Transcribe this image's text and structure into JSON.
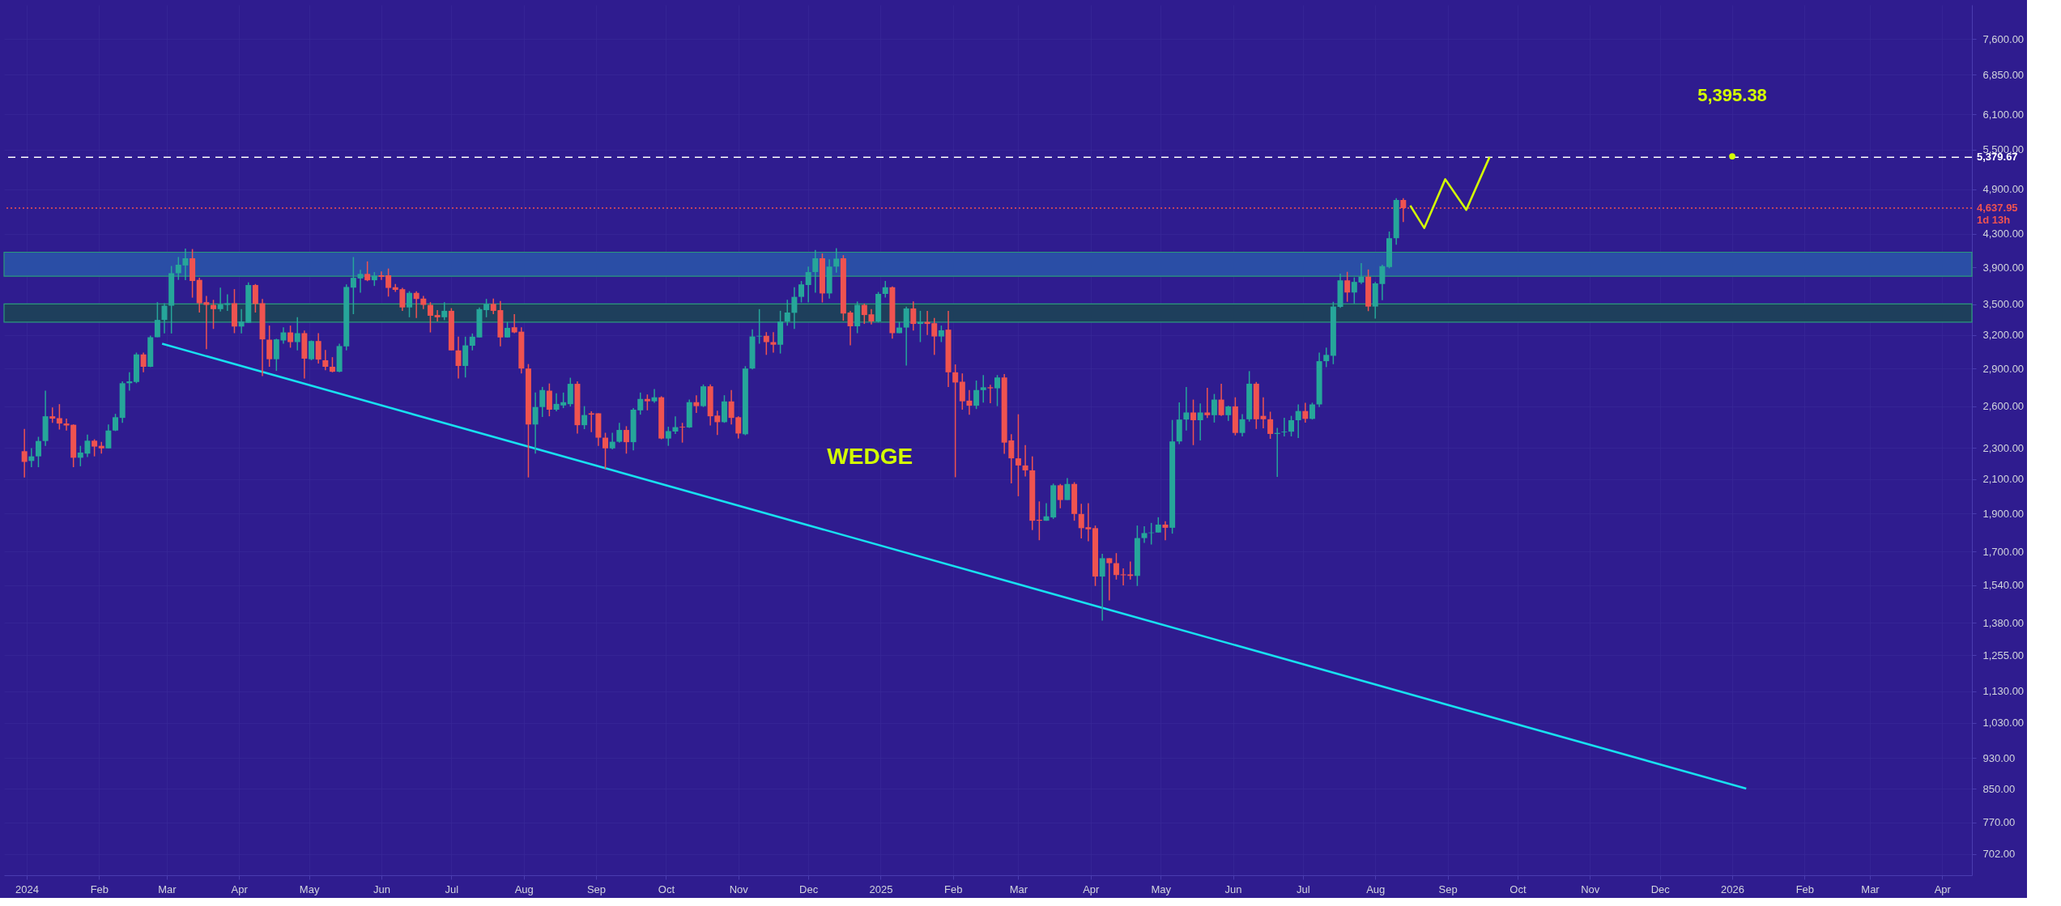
{
  "chart_data": {
    "type": "candlestick",
    "x": [
      "2023-12-31",
      "2024-01-03",
      "2024-01-06",
      "2024-01-09",
      "2024-01-12",
      "2024-01-15",
      "2024-01-18",
      "2024-01-21",
      "2024-01-24",
      "2024-01-27",
      "2024-01-30",
      "2024-02-02",
      "2024-02-05",
      "2024-02-08",
      "2024-02-11",
      "2024-02-14",
      "2024-02-17",
      "2024-02-20",
      "2024-02-23",
      "2024-02-26",
      "2024-02-29",
      "2024-03-03",
      "2024-03-06",
      "2024-03-09",
      "2024-03-12",
      "2024-03-15",
      "2024-03-18",
      "2024-03-21",
      "2024-03-24",
      "2024-03-27",
      "2024-03-30",
      "2024-04-02",
      "2024-04-05",
      "2024-04-08",
      "2024-04-11",
      "2024-04-14",
      "2024-04-17",
      "2024-04-20",
      "2024-04-23",
      "2024-04-26",
      "2024-04-29",
      "2024-05-02",
      "2024-05-05",
      "2024-05-08",
      "2024-05-11",
      "2024-05-14",
      "2024-05-17",
      "2024-05-20",
      "2024-05-23",
      "2024-05-26",
      "2024-05-29",
      "2024-06-01",
      "2024-06-04",
      "2024-06-07",
      "2024-06-10",
      "2024-06-13",
      "2024-06-16",
      "2024-06-19",
      "2024-06-22",
      "2024-06-25",
      "2024-06-28",
      "2024-07-01",
      "2024-07-04",
      "2024-07-07",
      "2024-07-10",
      "2024-07-13",
      "2024-07-16",
      "2024-07-19",
      "2024-07-22",
      "2024-07-25",
      "2024-07-28",
      "2024-07-31",
      "2024-08-03",
      "2024-08-06",
      "2024-08-09",
      "2024-08-12",
      "2024-08-15",
      "2024-08-18",
      "2024-08-21",
      "2024-08-24",
      "2024-08-27",
      "2024-08-30",
      "2024-09-02",
      "2024-09-05",
      "2024-09-08",
      "2024-09-11",
      "2024-09-14",
      "2024-09-17",
      "2024-09-20",
      "2024-09-23",
      "2024-09-26",
      "2024-09-29",
      "2024-10-02",
      "2024-10-05",
      "2024-10-08",
      "2024-10-11",
      "2024-10-14",
      "2024-10-17",
      "2024-10-20",
      "2024-10-23",
      "2024-10-26",
      "2024-10-29",
      "2024-11-01",
      "2024-11-04",
      "2024-11-07",
      "2024-11-10",
      "2024-11-13",
      "2024-11-16",
      "2024-11-19",
      "2024-11-22",
      "2024-11-25",
      "2024-11-28",
      "2024-12-01",
      "2024-12-04",
      "2024-12-07",
      "2024-12-10",
      "2024-12-13",
      "2024-12-16",
      "2024-12-19",
      "2024-12-22",
      "2024-12-25",
      "2024-12-28",
      "2024-12-31",
      "2025-01-03",
      "2025-01-06",
      "2025-01-09",
      "2025-01-12",
      "2025-01-15",
      "2025-01-18",
      "2025-01-21",
      "2025-01-24",
      "2025-01-27",
      "2025-01-30",
      "2025-02-02",
      "2025-02-05",
      "2025-02-08",
      "2025-02-11",
      "2025-02-14",
      "2025-02-17",
      "2025-02-20",
      "2025-02-23",
      "2025-02-26",
      "2025-03-01",
      "2025-03-04",
      "2025-03-07",
      "2025-03-10",
      "2025-03-13",
      "2025-03-16",
      "2025-03-19",
      "2025-03-22",
      "2025-03-25",
      "2025-03-28",
      "2025-03-31",
      "2025-04-03",
      "2025-04-06",
      "2025-04-09",
      "2025-04-12",
      "2025-04-15",
      "2025-04-18",
      "2025-04-21",
      "2025-04-24",
      "2025-04-27",
      "2025-04-30",
      "2025-05-03",
      "2025-05-06",
      "2025-05-09",
      "2025-05-12",
      "2025-05-15",
      "2025-05-18",
      "2025-05-21",
      "2025-05-24",
      "2025-05-27",
      "2025-05-30",
      "2025-06-02",
      "2025-06-05",
      "2025-06-08",
      "2025-06-11",
      "2025-06-14",
      "2025-06-17",
      "2025-06-20",
      "2025-06-23",
      "2025-06-26",
      "2025-06-29",
      "2025-07-02",
      "2025-07-05",
      "2025-07-08",
      "2025-07-11",
      "2025-07-14",
      "2025-07-17",
      "2025-07-20",
      "2025-07-23",
      "2025-07-26",
      "2025-07-29",
      "2025-08-01",
      "2025-08-04",
      "2025-08-07",
      "2025-08-10",
      "2025-08-13"
    ],
    "ohlc": [
      [
        2279,
        2433,
        2111,
        2209
      ],
      [
        2215,
        2300,
        2175,
        2245
      ],
      [
        2245,
        2377,
        2175,
        2348
      ],
      [
        2348,
        2720,
        2315,
        2524
      ],
      [
        2524,
        2590,
        2476,
        2507
      ],
      [
        2510,
        2615,
        2428,
        2471
      ],
      [
        2471,
        2507,
        2421,
        2457
      ],
      [
        2462,
        2465,
        2175,
        2236
      ],
      [
        2236,
        2315,
        2181,
        2270
      ],
      [
        2263,
        2393,
        2241,
        2350
      ],
      [
        2350,
        2360,
        2245,
        2310
      ],
      [
        2315,
        2342,
        2263,
        2298
      ],
      [
        2298,
        2464,
        2298,
        2421
      ],
      [
        2421,
        2542,
        2417,
        2517
      ],
      [
        2512,
        2795,
        2476,
        2780
      ],
      [
        2780,
        2870,
        2720,
        2795
      ],
      [
        2790,
        3040,
        2780,
        3024
      ],
      [
        3024,
        3040,
        2870,
        2917
      ],
      [
        2917,
        3195,
        2914,
        3180
      ],
      [
        3180,
        3523,
        3180,
        3345
      ],
      [
        3345,
        3513,
        3215,
        3487
      ],
      [
        3487,
        3916,
        3215,
        3834
      ],
      [
        3834,
        4020,
        3760,
        3930
      ],
      [
        3922,
        4120,
        3757,
        4005
      ],
      [
        4005,
        4115,
        3570,
        3748
      ],
      [
        3760,
        3783,
        3418,
        3512
      ],
      [
        3523,
        3588,
        3071,
        3495
      ],
      [
        3495,
        3547,
        3258,
        3452
      ],
      [
        3452,
        3675,
        3428,
        3499
      ],
      [
        3495,
        3605,
        3435,
        3512
      ],
      [
        3512,
        3660,
        3218,
        3281
      ],
      [
        3281,
        3452,
        3215,
        3330
      ],
      [
        3317,
        3733,
        3317,
        3704
      ],
      [
        3704,
        3715,
        3418,
        3505
      ],
      [
        3512,
        3557,
        2839,
        3160
      ],
      [
        3157,
        3290,
        2917,
        2982
      ],
      [
        2982,
        3166,
        2882,
        3160
      ],
      [
        3150,
        3274,
        3120,
        3225
      ],
      [
        3225,
        3290,
        3084,
        3135
      ],
      [
        3135,
        3371,
        3060,
        3218
      ],
      [
        3218,
        3242,
        2819,
        2987
      ],
      [
        2982,
        3150,
        2973,
        3145
      ],
      [
        3145,
        3218,
        2944,
        2979
      ],
      [
        2973,
        3063,
        2888,
        2917
      ],
      [
        2917,
        3000,
        2870,
        2875
      ],
      [
        2875,
        3120,
        2870,
        3099
      ],
      [
        3096,
        3711,
        3060,
        3683
      ],
      [
        3676,
        4020,
        3402,
        3783
      ],
      [
        3776,
        3872,
        3623,
        3826
      ],
      [
        3826,
        3969,
        3746,
        3756
      ],
      [
        3756,
        3847,
        3694,
        3808
      ],
      [
        3811,
        3855,
        3760,
        3794
      ],
      [
        3811,
        3887,
        3581,
        3673
      ],
      [
        3680,
        3715,
        3630,
        3652
      ],
      [
        3659,
        3673,
        3435,
        3469
      ],
      [
        3469,
        3638,
        3371,
        3620
      ],
      [
        3620,
        3638,
        3364,
        3557
      ],
      [
        3560,
        3588,
        3452,
        3495
      ],
      [
        3495,
        3523,
        3225,
        3386
      ],
      [
        3393,
        3442,
        3330,
        3371
      ],
      [
        3371,
        3523,
        3343,
        3435
      ],
      [
        3435,
        3462,
        3060,
        3060
      ],
      [
        3060,
        3185,
        2819,
        2924
      ],
      [
        2924,
        3185,
        2827,
        3105
      ],
      [
        3102,
        3215,
        3060,
        3185
      ],
      [
        3178,
        3469,
        3178,
        3452
      ],
      [
        3442,
        3557,
        3371,
        3505
      ],
      [
        3505,
        3560,
        3402,
        3435
      ],
      [
        3442,
        3535,
        3096,
        3178
      ],
      [
        3178,
        3325,
        3178,
        3268
      ],
      [
        3274,
        3402,
        3218,
        3225
      ],
      [
        3232,
        3274,
        2861,
        2902
      ],
      [
        2902,
        2940,
        2111,
        2464
      ],
      [
        2464,
        2705,
        2263,
        2593
      ],
      [
        2593,
        2750,
        2519,
        2725
      ],
      [
        2720,
        2778,
        2524,
        2573
      ],
      [
        2573,
        2700,
        2561,
        2617
      ],
      [
        2605,
        2705,
        2585,
        2630
      ],
      [
        2615,
        2825,
        2597,
        2775
      ],
      [
        2775,
        2795,
        2400,
        2459
      ],
      [
        2459,
        2600,
        2431,
        2533
      ],
      [
        2546,
        2561,
        2409,
        2536
      ],
      [
        2546,
        2546,
        2315,
        2371
      ],
      [
        2371,
        2405,
        2164,
        2298
      ],
      [
        2298,
        2405,
        2291,
        2343
      ],
      [
        2343,
        2476,
        2337,
        2425
      ],
      [
        2425,
        2452,
        2263,
        2340
      ],
      [
        2340,
        2585,
        2285,
        2573
      ],
      [
        2568,
        2705,
        2536,
        2655
      ],
      [
        2655,
        2690,
        2568,
        2637
      ],
      [
        2637,
        2733,
        2625,
        2668
      ],
      [
        2668,
        2676,
        2360,
        2365
      ],
      [
        2365,
        2448,
        2315,
        2417
      ],
      [
        2414,
        2524,
        2397,
        2445
      ],
      [
        2448,
        2476,
        2337,
        2443
      ],
      [
        2443,
        2650,
        2440,
        2630
      ],
      [
        2630,
        2684,
        2549,
        2600
      ],
      [
        2600,
        2770,
        2593,
        2755
      ],
      [
        2755,
        2770,
        2457,
        2524
      ],
      [
        2529,
        2566,
        2390,
        2481
      ],
      [
        2481,
        2684,
        2476,
        2636
      ],
      [
        2636,
        2725,
        2464,
        2512
      ],
      [
        2517,
        2524,
        2365,
        2400
      ],
      [
        2395,
        2922,
        2388,
        2902
      ],
      [
        2902,
        3255,
        2894,
        3187
      ],
      [
        3187,
        3452,
        3120,
        3193
      ],
      [
        3193,
        3228,
        3020,
        3135
      ],
      [
        3135,
        3228,
        3041,
        3111
      ],
      [
        3111,
        3435,
        3032,
        3330
      ],
      [
        3330,
        3547,
        3290,
        3418
      ],
      [
        3415,
        3680,
        3258,
        3578
      ],
      [
        3578,
        3748,
        3520,
        3711
      ],
      [
        3704,
        3909,
        3520,
        3847
      ],
      [
        3847,
        4103,
        3623,
        4005
      ],
      [
        4005,
        4062,
        3520,
        3614
      ],
      [
        3614,
        3993,
        3560,
        3909
      ],
      [
        3909,
        4125,
        3840,
        4001
      ],
      [
        4005,
        4042,
        3337,
        3408
      ],
      [
        3418,
        3435,
        3105,
        3283
      ],
      [
        3283,
        3530,
        3218,
        3495
      ],
      [
        3495,
        3509,
        3306,
        3393
      ],
      [
        3400,
        3452,
        3300,
        3330
      ],
      [
        3330,
        3630,
        3320,
        3609
      ],
      [
        3609,
        3748,
        3570,
        3680
      ],
      [
        3680,
        3690,
        3166,
        3218
      ],
      [
        3218,
        3325,
        3218,
        3271
      ],
      [
        3271,
        3477,
        2928,
        3459
      ],
      [
        3459,
        3530,
        3242,
        3306
      ],
      [
        3306,
        3435,
        3135,
        3326
      ],
      [
        3326,
        3435,
        3200,
        3306
      ],
      [
        3313,
        3364,
        3020,
        3187
      ],
      [
        3187,
        3290,
        3135,
        3245
      ],
      [
        3251,
        3435,
        2750,
        2870
      ],
      [
        2870,
        2937,
        2112,
        2786
      ],
      [
        2792,
        2861,
        2573,
        2637
      ],
      [
        2642,
        2725,
        2536,
        2603
      ],
      [
        2603,
        2802,
        2578,
        2725
      ],
      [
        2725,
        2847,
        2627,
        2747
      ],
      [
        2747,
        2767,
        2622,
        2739
      ],
      [
        2739,
        2847,
        2600,
        2827
      ],
      [
        2827,
        2855,
        2262,
        2337
      ],
      [
        2352,
        2395,
        2074,
        2232
      ],
      [
        2232,
        2539,
        1998,
        2186
      ],
      [
        2186,
        2320,
        2117,
        2155
      ],
      [
        2155,
        2245,
        1810,
        1860
      ],
      [
        1865,
        1968,
        1757,
        1860
      ],
      [
        1860,
        1958,
        1860,
        1884
      ],
      [
        1878,
        2073,
        1870,
        2063
      ],
      [
        2063,
        2071,
        1929,
        1976
      ],
      [
        1976,
        2107,
        1976,
        2071
      ],
      [
        2071,
        2082,
        1860,
        1897
      ],
      [
        1897,
        1954,
        1766,
        1820
      ],
      [
        1825,
        1958,
        1752,
        1814
      ],
      [
        1820,
        1834,
        1537,
        1580
      ],
      [
        1580,
        1689,
        1389,
        1667
      ],
      [
        1667,
        1667,
        1474,
        1643
      ],
      [
        1643,
        1692,
        1566,
        1587
      ],
      [
        1590,
        1618,
        1540,
        1586
      ],
      [
        1590,
        1651,
        1566,
        1583
      ],
      [
        1583,
        1834,
        1537,
        1768
      ],
      [
        1768,
        1830,
        1743,
        1794
      ],
      [
        1794,
        1848,
        1735,
        1797
      ],
      [
        1797,
        1879,
        1797,
        1839
      ],
      [
        1839,
        1857,
        1757,
        1822
      ],
      [
        1822,
        2497,
        1791,
        2345
      ],
      [
        2345,
        2628,
        2327,
        2500
      ],
      [
        2500,
        2749,
        2421,
        2552
      ],
      [
        2552,
        2650,
        2320,
        2495
      ],
      [
        2495,
        2620,
        2352,
        2552
      ],
      [
        2552,
        2743,
        2512,
        2532
      ],
      [
        2532,
        2694,
        2478,
        2650
      ],
      [
        2650,
        2775,
        2527,
        2532
      ],
      [
        2532,
        2603,
        2490,
        2598
      ],
      [
        2598,
        2668,
        2387,
        2404
      ],
      [
        2404,
        2540,
        2380,
        2502
      ],
      [
        2502,
        2880,
        2485,
        2776
      ],
      [
        2776,
        2790,
        2432,
        2502
      ],
      [
        2527,
        2668,
        2437,
        2502
      ],
      [
        2502,
        2558,
        2363,
        2397
      ],
      [
        2397,
        2440,
        2114,
        2404
      ],
      [
        2408,
        2513,
        2380,
        2413
      ],
      [
        2413,
        2527,
        2380,
        2495
      ],
      [
        2495,
        2613,
        2368,
        2563
      ],
      [
        2563,
        2626,
        2477,
        2505
      ],
      [
        2505,
        2626,
        2500,
        2613
      ],
      [
        2613,
        3041,
        2593,
        2965
      ],
      [
        2965,
        3085,
        2914,
        3020
      ],
      [
        3012,
        3527,
        2939,
        3478
      ],
      [
        3475,
        3830,
        3465,
        3755
      ],
      [
        3755,
        3850,
        3527,
        3624
      ],
      [
        3624,
        3788,
        3510,
        3738
      ],
      [
        3732,
        3948,
        3715,
        3795
      ],
      [
        3795,
        3876,
        3432,
        3478
      ],
      [
        3478,
        3738,
        3357,
        3722
      ],
      [
        3715,
        3931,
        3543,
        3914
      ],
      [
        3904,
        4331,
        3890,
        4247
      ],
      [
        4247,
        4775,
        4168,
        4749
      ],
      [
        4749,
        4775,
        4453,
        4637.95
      ]
    ],
    "colors": [
      "#ef5350",
      "#26a69a",
      "#26a69a",
      "#26a69a",
      "#ef5350",
      "#ef5350",
      "#ef5350",
      "#ef5350",
      "#26a69a",
      "#26a69a",
      "#ef5350",
      "#ef5350",
      "#26a69a",
      "#26a69a",
      "#26a69a",
      "#26a69a",
      "#26a69a",
      "#ef5350",
      "#26a69a",
      "#26a69a",
      "#26a69a",
      "#26a69a",
      "#26a69a",
      "#26a69a",
      "#ef5350",
      "#ef5350",
      "#ef5350",
      "#ef5350",
      "#26a69a",
      "#26a69a",
      "#ef5350",
      "#26a69a",
      "#26a69a",
      "#ef5350",
      "#ef5350",
      "#ef5350",
      "#26a69a",
      "#26a69a",
      "#ef5350",
      "#26a69a",
      "#ef5350",
      "#26a69a",
      "#ef5350",
      "#ef5350",
      "#ef5350",
      "#26a69a",
      "#26a69a",
      "#26a69a",
      "#26a69a",
      "#ef5350",
      "#26a69a",
      "#ef5350",
      "#ef5350",
      "#ef5350",
      "#ef5350",
      "#26a69a",
      "#ef5350",
      "#ef5350",
      "#ef5350",
      "#ef5350",
      "#26a69a",
      "#ef5350",
      "#ef5350",
      "#26a69a",
      "#26a69a",
      "#26a69a",
      "#26a69a",
      "#ef5350",
      "#ef5350",
      "#26a69a",
      "#ef5350",
      "#ef5350",
      "#ef5350",
      "#26a69a",
      "#26a69a",
      "#ef5350",
      "#26a69a",
      "#26a69a",
      "#26a69a",
      "#ef5350",
      "#26a69a",
      "#ef5350",
      "#ef5350",
      "#ef5350",
      "#26a69a",
      "#26a69a",
      "#ef5350",
      "#26a69a",
      "#26a69a",
      "#ef5350",
      "#26a69a",
      "#ef5350",
      "#26a69a",
      "#26a69a",
      "#ef5350",
      "#26a69a",
      "#ef5350",
      "#26a69a",
      "#ef5350",
      "#ef5350",
      "#26a69a",
      "#ef5350",
      "#ef5350",
      "#26a69a",
      "#26a69a",
      "#26a69a",
      "#ef5350",
      "#ef5350",
      "#26a69a",
      "#26a69a",
      "#26a69a",
      "#26a69a",
      "#26a69a",
      "#26a69a",
      "#ef5350",
      "#26a69a",
      "#26a69a",
      "#ef5350",
      "#ef5350",
      "#26a69a",
      "#ef5350",
      "#ef5350",
      "#26a69a",
      "#26a69a",
      "#ef5350",
      "#26a69a",
      "#26a69a",
      "#ef5350",
      "#26a69a",
      "#ef5350",
      "#ef5350",
      "#26a69a",
      "#ef5350",
      "#ef5350",
      "#ef5350",
      "#ef5350",
      "#26a69a",
      "#26a69a",
      "#ef5350",
      "#26a69a",
      "#ef5350",
      "#ef5350",
      "#ef5350",
      "#ef5350",
      "#ef5350",
      "#ef5350",
      "#26a69a",
      "#26a69a",
      "#ef5350",
      "#26a69a",
      "#ef5350",
      "#ef5350",
      "#ef5350",
      "#ef5350",
      "#26a69a",
      "#ef5350",
      "#ef5350",
      "#ef5350",
      "#ef5350",
      "#26a69a",
      "#26a69a",
      "#26a69a",
      "#26a69a",
      "#ef5350",
      "#26a69a",
      "#26a69a",
      "#26a69a",
      "#ef5350",
      "#26a69a",
      "#ef5350",
      "#26a69a",
      "#ef5350",
      "#26a69a",
      "#ef5350",
      "#26a69a",
      "#26a69a",
      "#ef5350",
      "#ef5350",
      "#ef5350",
      "#26a69a",
      "#26a69a",
      "#26a69a",
      "#26a69a",
      "#ef5350",
      "#26a69a",
      "#26a69a",
      "#26a69a",
      "#26a69a",
      "#26a69a",
      "#ef5350",
      "#26a69a",
      "#26a69a",
      "#ef5350",
      "#26a69a",
      "#26a69a",
      "#26a69a",
      "#26a69a",
      "#ef5350"
    ],
    "series": [
      {
        "type": "line",
        "color": "#18e0f0",
        "x": [
          "2024-02-28",
          "2026-01-07"
        ],
        "values": [
          3120,
          850
        ]
      },
      {
        "type": "line",
        "color": "#d4ff00",
        "x": [
          "2025-08-16",
          "2025-08-22",
          "2025-08-31",
          "2025-09-09",
          "2025-09-19"
        ],
        "values": [
          4672,
          4376,
          5046,
          4614,
          5385
        ]
      }
    ],
    "bands": [
      {
        "axis": "y",
        "from": 3800,
        "to": 4077,
        "color": "#2a4ea6"
      },
      {
        "axis": "y",
        "from": 3324,
        "to": 3505,
        "color": "#1e3f5c"
      }
    ],
    "ref_lines": [
      {
        "axis": "y",
        "value": 5379.67,
        "label": "5,379.67",
        "color": "#ffffff",
        "line_style": "dashed"
      },
      {
        "axis": "y",
        "value": 4637.95,
        "label": "4,637.95\n1d 13h",
        "color": "#ef5350",
        "line_style": "dotted"
      }
    ],
    "annotations": [
      "WEDGE",
      {
        "text": "5,395.38",
        "x": "2026-01-01",
        "y": 5395.38
      }
    ],
    "log": true,
    "grid": true,
    "xlim": [
      "2023-12-24",
      "2026-04-12"
    ],
    "xticks": [
      {
        "value": "2024-01-01",
        "label": "2024"
      },
      {
        "value": "2024-02-01",
        "label": "Feb"
      },
      {
        "value": "2024-03-01",
        "label": "Mar"
      },
      {
        "value": "2024-04-01",
        "label": "Apr"
      },
      {
        "value": "2024-05-01",
        "label": "May"
      },
      {
        "value": "2024-06-01",
        "label": "Jun"
      },
      {
        "value": "2024-07-01",
        "label": "Jul"
      },
      {
        "value": "2024-08-01",
        "label": "Aug"
      },
      {
        "value": "2024-09-01",
        "label": "Sep"
      },
      {
        "value": "2024-10-01",
        "label": "Oct"
      },
      {
        "value": "2024-11-01",
        "label": "Nov"
      },
      {
        "value": "2024-12-01",
        "label": "Dec"
      },
      {
        "value": "2025-01-01",
        "label": "2025"
      },
      {
        "value": "2025-02-01",
        "label": "Feb"
      },
      {
        "value": "2025-03-01",
        "label": "Mar"
      },
      {
        "value": "2025-04-01",
        "label": "Apr"
      },
      {
        "value": "2025-05-01",
        "label": "May"
      },
      {
        "value": "2025-06-01",
        "label": "Jun"
      },
      {
        "value": "2025-07-01",
        "label": "Jul"
      },
      {
        "value": "2025-08-01",
        "label": "Aug"
      },
      {
        "value": "2025-09-01",
        "label": "Sep"
      },
      {
        "value": "2025-10-01",
        "label": "Oct"
      },
      {
        "value": "2025-11-01",
        "label": "Nov"
      },
      {
        "value": "2025-12-01",
        "label": "Dec"
      },
      {
        "value": "2026-01-01",
        "label": "2026"
      },
      {
        "value": "2026-02-01",
        "label": "Feb"
      },
      {
        "value": "2026-03-01",
        "label": "Mar"
      },
      {
        "value": "2026-04-01",
        "label": "Apr"
      }
    ],
    "ylim": [
      660,
      8400
    ],
    "yticks": [
      {
        "value": 702,
        "label": "702.00"
      },
      {
        "value": 770,
        "label": "770.00"
      },
      {
        "value": 850,
        "label": "850.00"
      },
      {
        "value": 930,
        "label": "930.00"
      },
      {
        "value": 1030,
        "label": "1,030.00"
      },
      {
        "value": 1130,
        "label": "1,130.00"
      },
      {
        "value": 1255,
        "label": "1,255.00"
      },
      {
        "value": 1380,
        "label": "1,380.00"
      },
      {
        "value": 1540,
        "label": "1,540.00"
      },
      {
        "value": 1700,
        "label": "1,700.00"
      },
      {
        "value": 1900,
        "label": "1,900.00"
      },
      {
        "value": 2100,
        "label": "2,100.00"
      },
      {
        "value": 2300,
        "label": "2,300.00"
      },
      {
        "value": 2600,
        "label": "2,600.00"
      },
      {
        "value": 2900,
        "label": "2,900.00"
      },
      {
        "value": 3200,
        "label": "3,200.00"
      },
      {
        "value": 3500,
        "label": "3,500.00"
      },
      {
        "value": 3900,
        "label": "3,900.00"
      },
      {
        "value": 4300,
        "label": "4,300.00"
      },
      {
        "value": 4900,
        "label": "4,900.00"
      },
      {
        "value": 5500,
        "label": "5,500.00"
      },
      {
        "value": 6100,
        "label": "6,100.00"
      },
      {
        "value": 6850,
        "label": "6,850.00"
      },
      {
        "value": 7600,
        "label": "7,600.00"
      }
    ]
  }
}
